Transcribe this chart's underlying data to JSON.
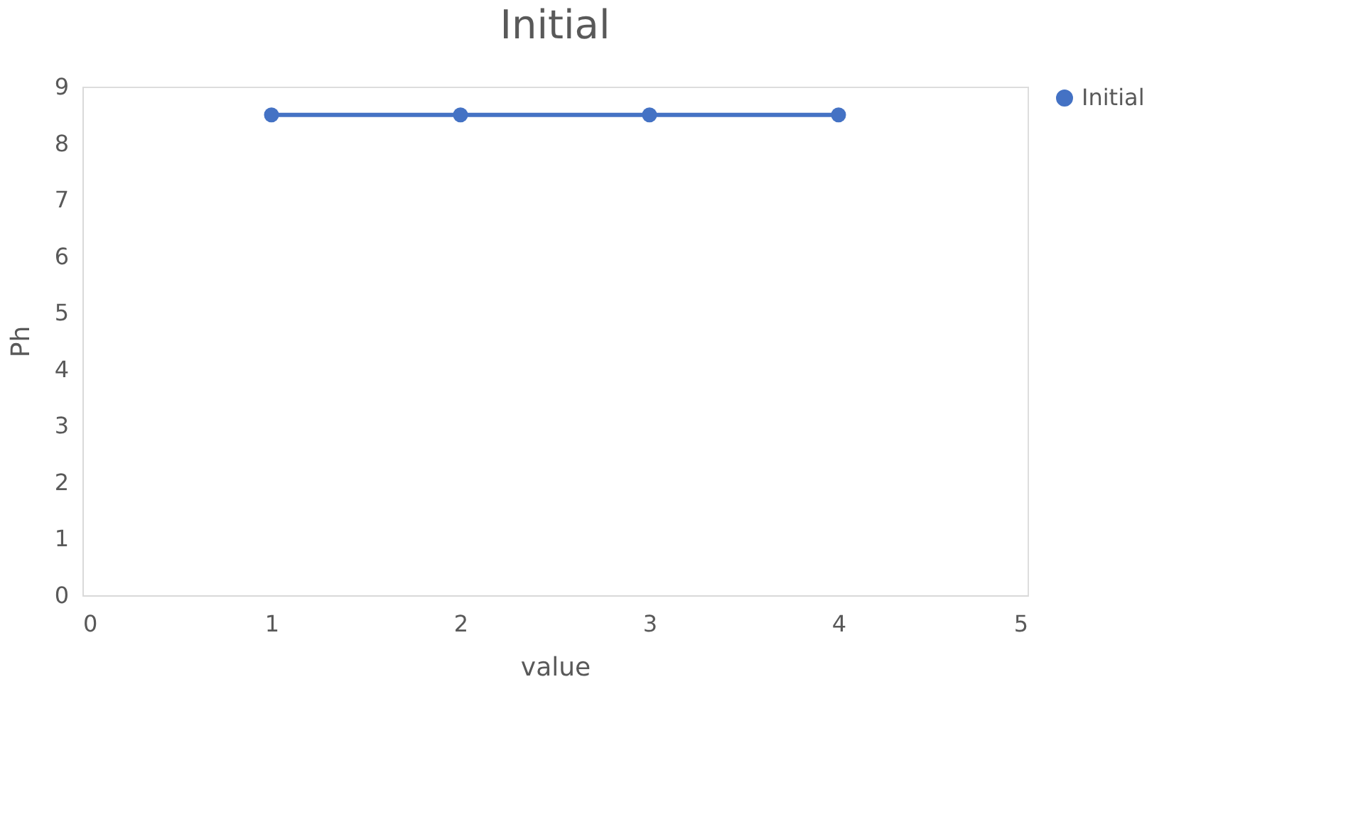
{
  "chart_data": {
    "type": "line",
    "title": "Initial",
    "xlabel": "value",
    "ylabel": "Ph",
    "x": [
      1,
      2,
      3,
      4
    ],
    "series": [
      {
        "name": "Initial",
        "color": "#4472c4",
        "values": [
          8.5,
          8.5,
          8.5,
          8.5
        ]
      }
    ],
    "xlim": [
      0,
      5
    ],
    "xticks": [
      0,
      1,
      2,
      3,
      4,
      5
    ],
    "ylim": [
      0,
      9
    ],
    "yticks": [
      0,
      1,
      2,
      3,
      4,
      5,
      6,
      7,
      8,
      9
    ],
    "grid": false,
    "legend": "right",
    "marker": "circle",
    "line_style": "solid"
  }
}
